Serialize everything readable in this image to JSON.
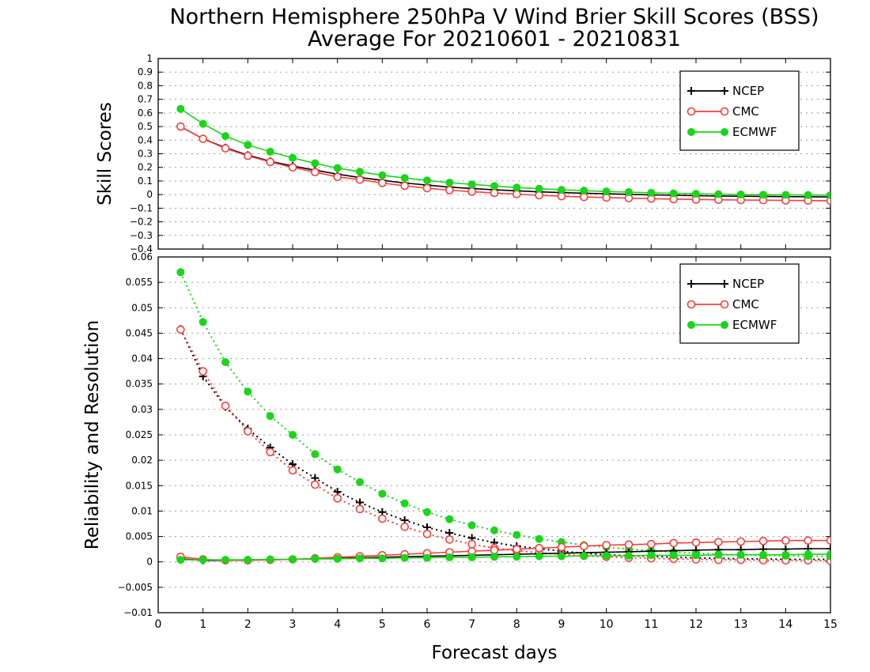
{
  "figure": {
    "title_line1": "Northern Hemisphere 250hPa V Wind Brier Skill Scores (BSS)",
    "title_line2": "Average For 20210601 - 20210831",
    "xlabel": "Forecast days",
    "x_ticks": [
      0,
      1,
      2,
      3,
      4,
      5,
      6,
      7,
      8,
      9,
      10,
      11,
      12,
      13,
      14,
      15
    ],
    "legend_labels": [
      "NCEP",
      "CMC",
      "ECMWF"
    ]
  },
  "colors": {
    "ncep": "#000000",
    "cmc": "#ff3b3b",
    "ecmwf": "#19d619",
    "grid": "#9a9a9a"
  },
  "chart_data": [
    {
      "type": "line",
      "title": "Northern Hemisphere 250hPa V Wind Brier Skill Scores (BSS)",
      "xlabel": "Forecast days",
      "ylabel": "Skill Scores",
      "xlim": [
        0,
        15
      ],
      "ylim": [
        -0.4,
        1
      ],
      "y_ticks": [
        -0.4,
        -0.3,
        -0.2,
        -0.1,
        0,
        0.1,
        0.2,
        0.3,
        0.4,
        0.5,
        0.6,
        0.7,
        0.8,
        0.9,
        1
      ],
      "grid": true,
      "legend_position": "top-right",
      "x": [
        0.5,
        1,
        1.5,
        2,
        2.5,
        3,
        3.5,
        4,
        4.5,
        5,
        5.5,
        6,
        6.5,
        7,
        7.5,
        8,
        8.5,
        9,
        9.5,
        10,
        10.5,
        11,
        11.5,
        12,
        12.5,
        13,
        13.5,
        14,
        14.5,
        15
      ],
      "series": [
        {
          "name": "NCEP",
          "marker": "plus",
          "line": "solid",
          "values": [
            0.5,
            0.41,
            0.345,
            0.29,
            0.245,
            0.21,
            0.18,
            0.15,
            0.125,
            0.105,
            0.085,
            0.07,
            0.055,
            0.045,
            0.035,
            0.028,
            0.02,
            0.015,
            0.01,
            0.006,
            0.002,
            -0.002,
            -0.005,
            -0.008,
            -0.01,
            -0.012,
            -0.013,
            -0.015,
            -0.016,
            -0.017
          ]
        },
        {
          "name": "CMC",
          "marker": "open-circle",
          "line": "solid",
          "values": [
            0.5,
            0.41,
            0.34,
            0.285,
            0.24,
            0.2,
            0.165,
            0.13,
            0.11,
            0.085,
            0.065,
            0.047,
            0.033,
            0.022,
            0.012,
            0.003,
            -0.005,
            -0.012,
            -0.018,
            -0.022,
            -0.026,
            -0.03,
            -0.033,
            -0.036,
            -0.038,
            -0.04,
            -0.041,
            -0.043,
            -0.044,
            -0.045
          ]
        },
        {
          "name": "ECMWF",
          "marker": "filled-circle",
          "line": "solid",
          "values": [
            0.63,
            0.52,
            0.43,
            0.365,
            0.315,
            0.27,
            0.23,
            0.195,
            0.168,
            0.142,
            0.122,
            0.104,
            0.088,
            0.075,
            0.063,
            0.052,
            0.043,
            0.035,
            0.029,
            0.023,
            0.018,
            0.013,
            0.009,
            0.006,
            0.003,
            0.001,
            -0.001,
            -0.002,
            -0.003,
            -0.004
          ]
        }
      ]
    },
    {
      "type": "line",
      "xlabel": "Forecast days",
      "ylabel": "Reliability and Resolution",
      "xlim": [
        0,
        15
      ],
      "ylim": [
        -0.01,
        0.06
      ],
      "y_ticks": [
        -0.01,
        -0.005,
        0,
        0.005,
        0.01,
        0.015,
        0.02,
        0.025,
        0.03,
        0.035,
        0.04,
        0.045,
        0.05,
        0.055,
        0.06
      ],
      "grid": true,
      "legend_position": "top-right",
      "x": [
        0.5,
        1,
        1.5,
        2,
        2.5,
        3,
        3.5,
        4,
        4.5,
        5,
        5.5,
        6,
        6.5,
        7,
        7.5,
        8,
        8.5,
        9,
        9.5,
        10,
        10.5,
        11,
        11.5,
        12,
        12.5,
        13,
        13.5,
        14,
        14.5,
        15
      ],
      "series": [
        {
          "name": "NCEP",
          "component": "resolution",
          "marker": "plus",
          "line": "dotted",
          "values": [
            0.0458,
            0.0365,
            0.0305,
            0.0262,
            0.0225,
            0.0192,
            0.0165,
            0.0138,
            0.0117,
            0.0098,
            0.0082,
            0.0068,
            0.0057,
            0.0047,
            0.0038,
            0.0031,
            0.0026,
            0.0021,
            0.0017,
            0.0014,
            0.0012,
            0.0011,
            0.0009,
            0.0008,
            0.0007,
            0.0006,
            0.0006,
            0.0005,
            0.0005,
            0.0005
          ]
        },
        {
          "name": "CMC",
          "component": "resolution",
          "marker": "open-circle",
          "line": "dotted",
          "values": [
            0.0457,
            0.0375,
            0.0307,
            0.0257,
            0.0216,
            0.018,
            0.0152,
            0.0125,
            0.0104,
            0.0085,
            0.0069,
            0.0055,
            0.0044,
            0.0035,
            0.0027,
            0.0022,
            0.0018,
            0.0015,
            0.0012,
            0.001,
            0.0008,
            0.0007,
            0.0006,
            0.0005,
            0.0004,
            0.0004,
            0.0003,
            0.0003,
            0.0003,
            0.0002
          ]
        },
        {
          "name": "ECMWF",
          "component": "resolution",
          "marker": "filled-circle",
          "line": "dotted",
          "values": [
            0.057,
            0.0472,
            0.0393,
            0.0335,
            0.0287,
            0.025,
            0.0212,
            0.0182,
            0.0157,
            0.0134,
            0.0115,
            0.0098,
            0.0084,
            0.0072,
            0.0062,
            0.0053,
            0.0045,
            0.0039,
            0.0033,
            0.0029,
            0.0025,
            0.0022,
            0.0019,
            0.0017,
            0.0015,
            0.0014,
            0.0013,
            0.0012,
            0.0011,
            0.0011
          ]
        },
        {
          "name": "NCEP",
          "component": "reliability",
          "marker": "plus",
          "line": "solid",
          "values": [
            0.0006,
            0.0003,
            0.0003,
            0.0004,
            0.0004,
            0.0005,
            0.0006,
            0.0007,
            0.0008,
            0.0009,
            0.001,
            0.0011,
            0.0012,
            0.0013,
            0.0014,
            0.0015,
            0.0016,
            0.0017,
            0.0018,
            0.0019,
            0.002,
            0.0021,
            0.0022,
            0.0023,
            0.0024,
            0.0024,
            0.0025,
            0.0025,
            0.0026,
            0.0026
          ]
        },
        {
          "name": "CMC",
          "component": "reliability",
          "marker": "open-circle",
          "line": "solid",
          "values": [
            0.001,
            0.0005,
            0.0003,
            0.0003,
            0.0004,
            0.0005,
            0.0007,
            0.0009,
            0.0011,
            0.0013,
            0.0015,
            0.0017,
            0.0019,
            0.0021,
            0.0023,
            0.0025,
            0.0027,
            0.0029,
            0.0031,
            0.0033,
            0.0034,
            0.0035,
            0.0037,
            0.0038,
            0.0039,
            0.004,
            0.0041,
            0.0042,
            0.0042,
            0.0042
          ]
        },
        {
          "name": "ECMWF",
          "component": "reliability",
          "marker": "filled-circle",
          "line": "solid",
          "values": [
            0.0004,
            0.0004,
            0.0004,
            0.0004,
            0.0005,
            0.0005,
            0.0006,
            0.0006,
            0.0007,
            0.0007,
            0.0008,
            0.0008,
            0.0009,
            0.0009,
            0.001,
            0.001,
            0.0011,
            0.0011,
            0.0012,
            0.0012,
            0.0012,
            0.0013,
            0.0013,
            0.0013,
            0.0014,
            0.0014,
            0.0014,
            0.0014,
            0.0015,
            0.0015
          ]
        }
      ]
    }
  ]
}
